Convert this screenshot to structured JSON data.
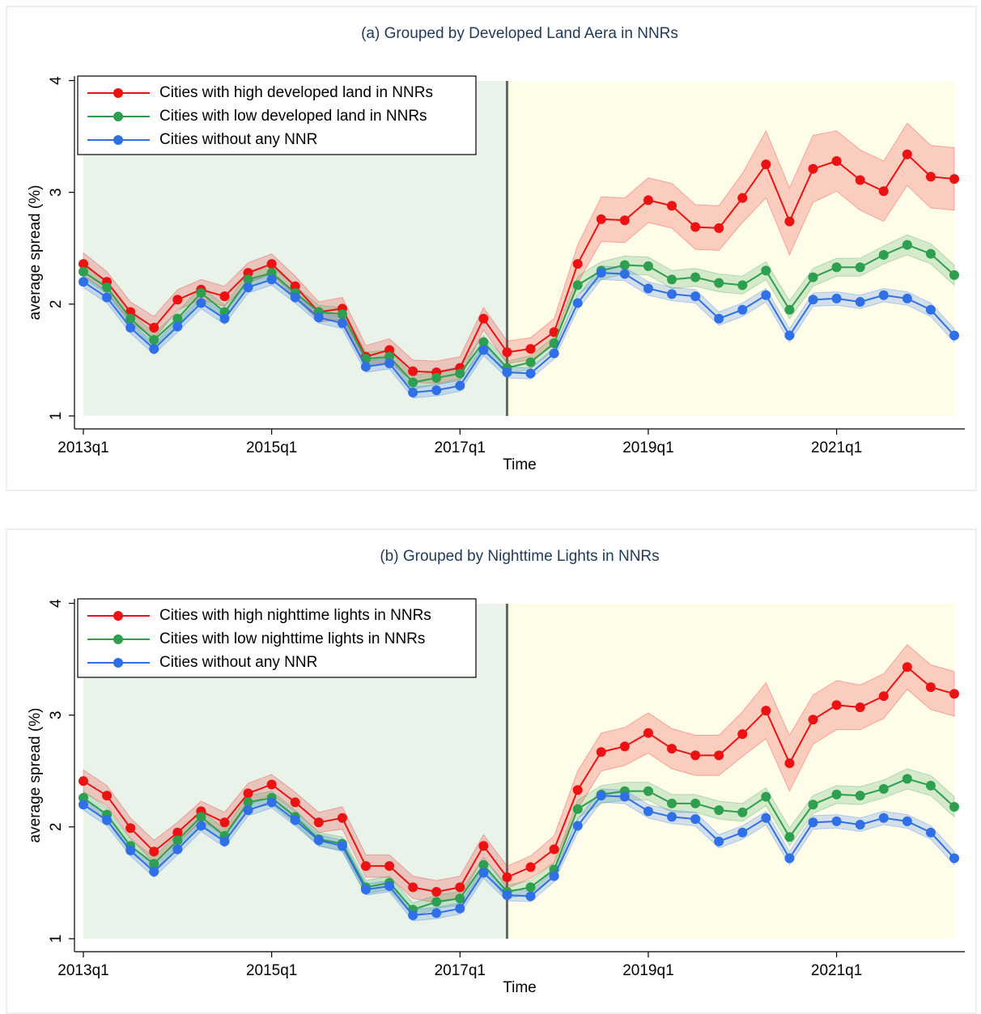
{
  "chart_data": [
    {
      "type": "line",
      "title": "(a) Grouped by Developed Land Aera in NNRs",
      "xlabel": "Time",
      "ylabel": "average spread (%)",
      "categories": [
        "2013q1",
        null,
        null,
        null,
        null,
        null,
        null,
        null,
        "2015q1",
        null,
        null,
        null,
        null,
        null,
        null,
        null,
        "2017q1",
        null,
        null,
        null,
        null,
        null,
        null,
        null,
        "2019q1",
        null,
        null,
        null,
        null,
        null,
        null,
        null,
        "2021q1",
        null,
        null,
        null,
        null,
        null
      ],
      "ylim": [
        0.884,
        4.04
      ],
      "yticks": [
        1,
        2,
        3,
        4
      ],
      "event": 18,
      "shade_colors": [
        "#e9f3e9",
        "#fefdea"
      ],
      "legend": "upper left",
      "series": [
        {
          "name": "Cities with high developed land in NNRs",
          "color": "#ee1111",
          "values": [
            2.36,
            2.2,
            1.93,
            1.79,
            2.04,
            2.13,
            2.07,
            2.28,
            2.36,
            2.16,
            1.93,
            1.96,
            1.53,
            1.59,
            1.4,
            1.39,
            1.43,
            1.87,
            1.57,
            1.6,
            1.75,
            2.36,
            2.76,
            2.75,
            2.93,
            2.88,
            2.69,
            2.68,
            2.95,
            3.25,
            2.74,
            3.21,
            3.28,
            3.11,
            3.01,
            3.34,
            3.14,
            3.12
          ],
          "errors": [
            0.1,
            0.09,
            0.09,
            0.1,
            0.09,
            0.09,
            0.09,
            0.09,
            0.09,
            0.09,
            0.09,
            0.1,
            0.1,
            0.1,
            0.1,
            0.1,
            0.1,
            0.1,
            0.1,
            0.1,
            0.12,
            0.17,
            0.2,
            0.2,
            0.2,
            0.2,
            0.2,
            0.2,
            0.22,
            0.3,
            0.3,
            0.3,
            0.27,
            0.27,
            0.27,
            0.28,
            0.28,
            0.28
          ]
        },
        {
          "name": "Cities with low developed land in NNRs",
          "color": "#2e9e4f",
          "values": [
            2.29,
            2.15,
            1.87,
            1.68,
            1.87,
            2.1,
            1.93,
            2.22,
            2.28,
            2.1,
            1.93,
            1.91,
            1.51,
            1.53,
            1.3,
            1.34,
            1.38,
            1.66,
            1.43,
            1.48,
            1.65,
            2.17,
            2.3,
            2.35,
            2.34,
            2.22,
            2.24,
            2.19,
            2.17,
            2.3,
            1.95,
            2.24,
            2.33,
            2.33,
            2.44,
            2.53,
            2.45,
            2.26
          ],
          "errors": [
            0.06,
            0.06,
            0.06,
            0.06,
            0.06,
            0.06,
            0.06,
            0.06,
            0.06,
            0.06,
            0.06,
            0.06,
            0.06,
            0.06,
            0.06,
            0.06,
            0.06,
            0.06,
            0.06,
            0.06,
            0.06,
            0.08,
            0.08,
            0.08,
            0.08,
            0.08,
            0.08,
            0.08,
            0.08,
            0.08,
            0.08,
            0.08,
            0.08,
            0.08,
            0.08,
            0.09,
            0.09,
            0.09
          ]
        },
        {
          "name": "Cities without any NNR",
          "color": "#2f6fe8",
          "values": [
            2.2,
            2.06,
            1.79,
            1.6,
            1.8,
            2.01,
            1.87,
            2.15,
            2.22,
            2.06,
            1.88,
            1.83,
            1.44,
            1.47,
            1.21,
            1.23,
            1.27,
            1.59,
            1.39,
            1.38,
            1.56,
            2.01,
            2.28,
            2.27,
            2.14,
            2.09,
            2.07,
            1.87,
            1.95,
            2.08,
            1.72,
            2.04,
            2.05,
            2.02,
            2.08,
            2.05,
            1.95,
            1.72
          ],
          "errors": [
            0.05,
            0.05,
            0.05,
            0.05,
            0.05,
            0.05,
            0.05,
            0.05,
            0.05,
            0.05,
            0.05,
            0.05,
            0.05,
            0.05,
            0.05,
            0.05,
            0.05,
            0.05,
            0.05,
            0.05,
            0.05,
            0.06,
            0.06,
            0.06,
            0.06,
            0.06,
            0.06,
            0.06,
            0.06,
            0.06,
            0.06,
            0.06,
            0.06,
            0.06,
            0.06,
            0.06,
            0.06,
            0.06
          ]
        }
      ]
    },
    {
      "type": "line",
      "title": "(b) Grouped by Nighttime Lights in NNRs",
      "xlabel": "Time",
      "ylabel": "average spread (%)",
      "categories": [
        "2013q1",
        null,
        null,
        null,
        null,
        null,
        null,
        null,
        "2015q1",
        null,
        null,
        null,
        null,
        null,
        null,
        null,
        "2017q1",
        null,
        null,
        null,
        null,
        null,
        null,
        null,
        "2019q1",
        null,
        null,
        null,
        null,
        null,
        null,
        null,
        "2021q1",
        null,
        null,
        null,
        null,
        null
      ],
      "ylim": [
        0.884,
        4.04
      ],
      "yticks": [
        1,
        2,
        3,
        4
      ],
      "event": 18,
      "shade_colors": [
        "#e9f3e9",
        "#fefdea"
      ],
      "legend": "upper left",
      "series": [
        {
          "name": "Cities with high nighttime lights in NNRs",
          "color": "#ee1111",
          "values": [
            2.41,
            2.28,
            1.99,
            1.78,
            1.95,
            2.14,
            2.04,
            2.3,
            2.38,
            2.22,
            2.04,
            2.08,
            1.65,
            1.65,
            1.46,
            1.42,
            1.46,
            1.83,
            1.55,
            1.64,
            1.8,
            2.33,
            2.67,
            2.72,
            2.84,
            2.7,
            2.64,
            2.64,
            2.83,
            3.04,
            2.57,
            2.96,
            3.09,
            3.07,
            3.17,
            3.43,
            3.25,
            3.19
          ],
          "errors": [
            0.1,
            0.09,
            0.09,
            0.1,
            0.09,
            0.09,
            0.09,
            0.09,
            0.09,
            0.09,
            0.09,
            0.1,
            0.1,
            0.1,
            0.1,
            0.1,
            0.1,
            0.1,
            0.1,
            0.1,
            0.12,
            0.17,
            0.17,
            0.17,
            0.18,
            0.18,
            0.18,
            0.18,
            0.2,
            0.25,
            0.25,
            0.22,
            0.22,
            0.2,
            0.2,
            0.2,
            0.2,
            0.2
          ]
        },
        {
          "name": "Cities with low nighttime lights in NNRs",
          "color": "#2e9e4f",
          "values": [
            2.26,
            2.11,
            1.83,
            1.67,
            1.88,
            2.09,
            1.92,
            2.22,
            2.26,
            2.09,
            1.89,
            1.85,
            1.46,
            1.5,
            1.26,
            1.33,
            1.36,
            1.66,
            1.42,
            1.46,
            1.62,
            2.16,
            2.29,
            2.32,
            2.32,
            2.21,
            2.21,
            2.15,
            2.13,
            2.27,
            1.91,
            2.2,
            2.29,
            2.28,
            2.34,
            2.43,
            2.37,
            2.18
          ],
          "errors": [
            0.06,
            0.06,
            0.06,
            0.06,
            0.06,
            0.06,
            0.06,
            0.06,
            0.06,
            0.06,
            0.06,
            0.06,
            0.06,
            0.06,
            0.06,
            0.06,
            0.06,
            0.06,
            0.06,
            0.06,
            0.06,
            0.08,
            0.08,
            0.08,
            0.08,
            0.08,
            0.08,
            0.08,
            0.08,
            0.08,
            0.08,
            0.08,
            0.08,
            0.08,
            0.08,
            0.09,
            0.09,
            0.09
          ]
        },
        {
          "name": "Cities without any NNR",
          "color": "#2f6fe8",
          "values": [
            2.2,
            2.06,
            1.79,
            1.6,
            1.8,
            2.01,
            1.87,
            2.15,
            2.22,
            2.06,
            1.88,
            1.83,
            1.44,
            1.47,
            1.21,
            1.23,
            1.27,
            1.59,
            1.39,
            1.38,
            1.56,
            2.01,
            2.28,
            2.27,
            2.14,
            2.09,
            2.07,
            1.87,
            1.95,
            2.08,
            1.72,
            2.04,
            2.05,
            2.02,
            2.08,
            2.05,
            1.95,
            1.72
          ],
          "errors": [
            0.05,
            0.05,
            0.05,
            0.05,
            0.05,
            0.05,
            0.05,
            0.05,
            0.05,
            0.05,
            0.05,
            0.05,
            0.05,
            0.05,
            0.05,
            0.05,
            0.05,
            0.05,
            0.05,
            0.05,
            0.05,
            0.06,
            0.06,
            0.06,
            0.06,
            0.06,
            0.06,
            0.06,
            0.06,
            0.06,
            0.06,
            0.06,
            0.06,
            0.06,
            0.06,
            0.06,
            0.06,
            0.06
          ]
        }
      ]
    }
  ]
}
